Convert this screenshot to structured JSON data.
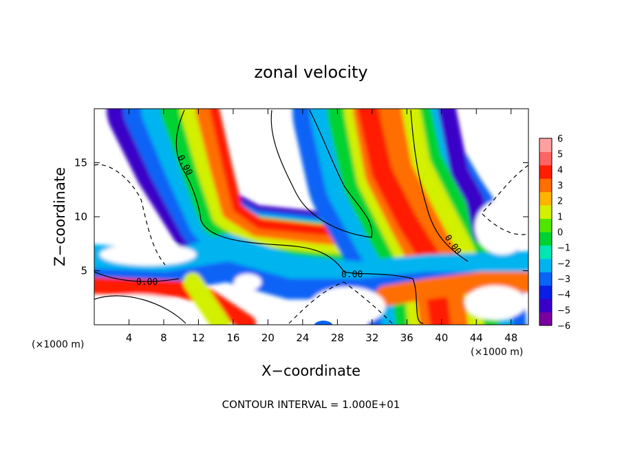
{
  "chart_data": {
    "type": "heatmap",
    "title": "zonal velocity",
    "xlabel": "X−coordinate",
    "ylabel": "Z−coordinate",
    "x_unit_note": "(×1000 m)",
    "y_unit_note": "(×1000 m)",
    "xlim": [
      0,
      50
    ],
    "ylim": [
      0,
      20
    ],
    "x_ticks": [
      4,
      8,
      12,
      16,
      20,
      24,
      28,
      32,
      36,
      40,
      44,
      48
    ],
    "y_ticks": [
      5,
      10,
      15
    ],
    "x_tick_labels": [
      "4",
      "8",
      "12",
      "16",
      "20",
      "24",
      "28",
      "32",
      "36",
      "40",
      "44",
      "48"
    ],
    "y_tick_labels": [
      "5",
      "10",
      "15"
    ],
    "colorbar": {
      "min": -6,
      "max": 6,
      "ticks": [
        6,
        5,
        4,
        3,
        2,
        1,
        0,
        -1,
        -2,
        -3,
        -4,
        -5,
        -6
      ],
      "tick_labels": [
        "6",
        "5",
        "4",
        "3",
        "2",
        "1",
        "0",
        "−1",
        "−2",
        "−3",
        "−4",
        "−5",
        "−6"
      ],
      "colors": [
        "#7a00a0",
        "#3a00c8",
        "#0a1ee6",
        "#0a64f5",
        "#00b4f0",
        "#00e6b4",
        "#00d232",
        "#50e600",
        "#d2f000",
        "#ffb400",
        "#ff6e00",
        "#ff1e00",
        "#ff6464",
        "#ffa0a0"
      ]
    },
    "contour_labels": [
      "0.00",
      "0.00",
      "0.00",
      "0.00"
    ],
    "footer": "CONTOUR INTERVAL = 1.000E+01",
    "grid": false
  }
}
